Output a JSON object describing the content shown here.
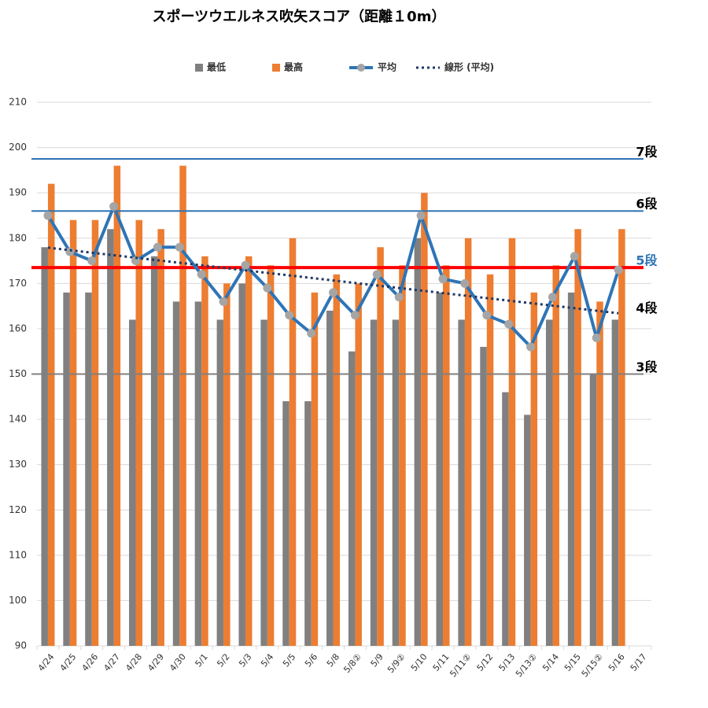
{
  "chart_data": {
    "type": "bar",
    "title": "スポーツウエルネス吹矢スコア（距離１0m）",
    "categories": [
      "4/24",
      "4/25",
      "4/26",
      "4/27",
      "4/28",
      "4/29",
      "4/30",
      "5/1",
      "5/2",
      "5/3",
      "5/4",
      "5/5",
      "5/6",
      "5/8",
      "5/8②",
      "5/9",
      "5/9②",
      "5/10",
      "5/11",
      "5/11②",
      "5/12",
      "5/13",
      "5/13②",
      "5/14",
      "5/15",
      "5/15②",
      "5/16",
      "5/17"
    ],
    "series": [
      {
        "name": "最低",
        "type": "bar",
        "color": "#808080",
        "values": [
          178,
          168,
          168,
          182,
          162,
          176,
          166,
          166,
          162,
          170,
          162,
          144,
          144,
          164,
          155,
          162,
          162,
          180,
          168,
          162,
          156,
          146,
          141,
          162,
          168,
          150,
          162,
          null
        ]
      },
      {
        "name": "最高",
        "type": "bar",
        "color": "#ed7d31",
        "values": [
          192,
          184,
          184,
          196,
          184,
          182,
          196,
          176,
          170,
          176,
          174,
          180,
          168,
          172,
          170,
          178,
          174,
          190,
          174,
          180,
          172,
          180,
          168,
          174,
          182,
          166,
          182,
          null
        ]
      },
      {
        "name": "平均",
        "type": "line",
        "color": "#2e75b6",
        "marker_color": "#a5a5a5",
        "values": [
          185,
          177,
          175,
          187,
          175,
          178,
          178,
          172,
          166,
          174,
          169,
          163,
          159,
          168,
          163,
          172,
          167,
          185,
          171,
          170,
          163,
          161,
          156,
          167,
          176,
          158,
          173,
          null
        ]
      }
    ],
    "trendline": {
      "name": "線形 (平均)",
      "of_series": 2,
      "color": "#1f3864"
    },
    "reference_lines": [
      {
        "label": "7段",
        "value": 197.5,
        "color": "#2e75b6",
        "label_color": "#000000"
      },
      {
        "label": "6段",
        "value": 186,
        "color": "#2e75b6",
        "label_color": "#000000"
      },
      {
        "label": "5段",
        "value": 173.5,
        "color": "#ff0000",
        "label_color": "#2e75b6"
      },
      {
        "label": "4段",
        "value": 163,
        "color": null,
        "label_color": "#000000"
      },
      {
        "label": "3段",
        "value": 150,
        "color": "#808080",
        "label_color": "#000000"
      }
    ],
    "ylim": [
      90,
      210
    ],
    "yticks": [
      90,
      100,
      110,
      120,
      130,
      140,
      150,
      160,
      170,
      180,
      190,
      200,
      210
    ],
    "grid": true,
    "legend": "top"
  }
}
